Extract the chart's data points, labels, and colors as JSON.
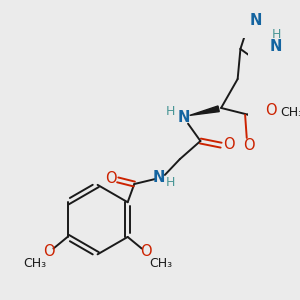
{
  "bg_color": "#ebebeb",
  "bond_color": "#1a1a1a",
  "N_color": "#1464a0",
  "O_color": "#cc2200",
  "NH_color": "#4a9696",
  "figsize": [
    3.0,
    3.0
  ],
  "dpi": 100,
  "xlim": [
    0,
    300
  ],
  "ylim": [
    0,
    300
  ]
}
